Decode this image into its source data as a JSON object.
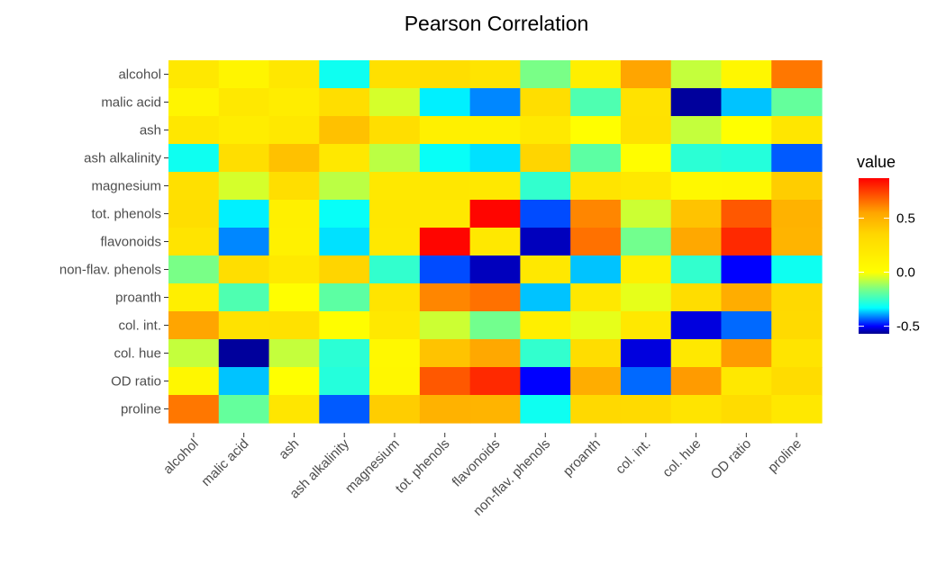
{
  "chart_data": {
    "type": "heatmap",
    "title": "Pearson Correlation",
    "variables": [
      "alcohol",
      "malic acid",
      "ash",
      "ash alkalinity",
      "magnesium",
      "tot. phenols",
      "flavonoids",
      "non-flav. phenols",
      "proanth",
      "col. int.",
      "col. hue",
      "OD ratio",
      "proline"
    ],
    "values": [
      [
        0.2,
        0.09,
        0.21,
        -0.31,
        0.27,
        0.29,
        0.24,
        -0.16,
        0.14,
        0.55,
        -0.07,
        0.07,
        0.64
      ],
      [
        0.09,
        0.2,
        0.16,
        0.29,
        -0.05,
        -0.34,
        -0.41,
        0.29,
        -0.22,
        0.25,
        -0.56,
        -0.37,
        -0.19
      ],
      [
        0.21,
        0.16,
        0.2,
        0.44,
        0.29,
        0.13,
        0.12,
        0.19,
        0.01,
        0.26,
        -0.07,
        0.0,
        0.22
      ],
      [
        -0.31,
        0.29,
        0.44,
        0.2,
        -0.08,
        -0.32,
        -0.35,
        0.36,
        -0.2,
        0.02,
        -0.27,
        -0.28,
        -0.44
      ],
      [
        0.27,
        -0.05,
        0.29,
        -0.08,
        0.2,
        0.21,
        0.2,
        -0.26,
        0.24,
        0.2,
        0.06,
        0.07,
        0.39
      ],
      [
        0.29,
        -0.34,
        0.13,
        -0.32,
        0.21,
        0.2,
        0.86,
        -0.45,
        0.61,
        -0.06,
        0.43,
        0.7,
        0.5
      ],
      [
        0.24,
        -0.41,
        0.12,
        -0.35,
        0.2,
        0.86,
        0.2,
        -0.54,
        0.65,
        -0.17,
        0.54,
        0.79,
        0.49
      ],
      [
        -0.16,
        0.29,
        0.19,
        0.36,
        -0.26,
        -0.45,
        -0.54,
        0.2,
        -0.37,
        0.14,
        -0.26,
        -0.5,
        -0.31
      ],
      [
        0.14,
        -0.22,
        0.01,
        -0.2,
        0.24,
        0.61,
        0.65,
        -0.37,
        0.2,
        -0.03,
        0.3,
        0.52,
        0.33
      ],
      [
        0.55,
        0.25,
        0.26,
        0.02,
        0.2,
        -0.06,
        -0.17,
        0.14,
        -0.03,
        0.2,
        -0.52,
        -0.43,
        0.32
      ],
      [
        -0.07,
        -0.56,
        -0.07,
        -0.27,
        0.06,
        0.43,
        0.54,
        -0.26,
        0.3,
        -0.52,
        0.2,
        0.57,
        0.24
      ],
      [
        0.07,
        -0.37,
        0.0,
        -0.28,
        0.07,
        0.7,
        0.79,
        -0.5,
        0.52,
        -0.43,
        0.57,
        0.2,
        0.31
      ],
      [
        0.64,
        -0.19,
        0.22,
        -0.44,
        0.39,
        0.5,
        0.49,
        -0.31,
        0.33,
        0.32,
        0.24,
        0.31,
        0.2
      ]
    ],
    "legend": {
      "title": "value",
      "ticks": [
        0.5,
        0.0,
        -0.5
      ],
      "tick_labels": [
        "0.5",
        "0.0",
        "-0.5"
      ],
      "range": [
        -0.57,
        0.87
      ],
      "placement": "right"
    },
    "color_stops": [
      {
        "value": -0.57,
        "color": "#00008B"
      },
      {
        "value": -0.5,
        "color": "#0000FF"
      },
      {
        "value": -0.33,
        "color": "#00FFFF"
      },
      {
        "value": -0.15,
        "color": "#80FF80"
      },
      {
        "value": 0.0,
        "color": "#FFFF00"
      },
      {
        "value": 0.35,
        "color": "#FFD700"
      },
      {
        "value": 0.55,
        "color": "#FFA500"
      },
      {
        "value": 0.87,
        "color": "#FF0000"
      }
    ]
  }
}
